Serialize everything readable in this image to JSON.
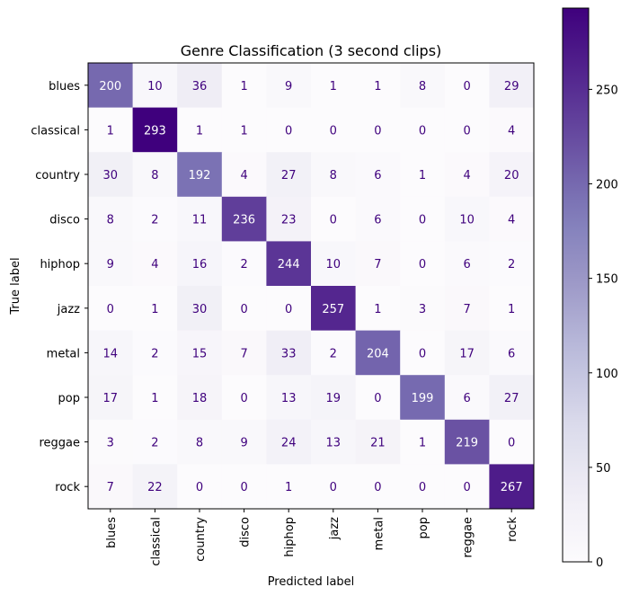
{
  "chart_data": {
    "type": "heatmap",
    "title": "Genre Classification (3 second clips)",
    "xlabel": "Predicted label",
    "ylabel": "True label",
    "labels": [
      "blues",
      "classical",
      "country",
      "disco",
      "hiphop",
      "jazz",
      "metal",
      "pop",
      "reggae",
      "rock"
    ],
    "matrix": [
      [
        200,
        10,
        36,
        1,
        9,
        1,
        1,
        8,
        0,
        29
      ],
      [
        1,
        293,
        1,
        1,
        0,
        0,
        0,
        0,
        0,
        4
      ],
      [
        30,
        8,
        192,
        4,
        27,
        8,
        6,
        1,
        4,
        20
      ],
      [
        8,
        2,
        11,
        236,
        23,
        0,
        6,
        0,
        10,
        4
      ],
      [
        9,
        4,
        16,
        2,
        244,
        10,
        7,
        0,
        6,
        2
      ],
      [
        0,
        1,
        30,
        0,
        0,
        257,
        1,
        3,
        7,
        1
      ],
      [
        14,
        2,
        15,
        7,
        33,
        2,
        204,
        0,
        17,
        6
      ],
      [
        17,
        1,
        18,
        0,
        13,
        19,
        0,
        199,
        6,
        27
      ],
      [
        3,
        2,
        8,
        9,
        24,
        13,
        21,
        1,
        219,
        0
      ],
      [
        7,
        22,
        0,
        0,
        1,
        0,
        0,
        0,
        0,
        267
      ]
    ],
    "colormap": "Purples",
    "vmin": 0,
    "vmax": 293,
    "colorbar_ticks": [
      0,
      50,
      100,
      150,
      200,
      250
    ]
  }
}
